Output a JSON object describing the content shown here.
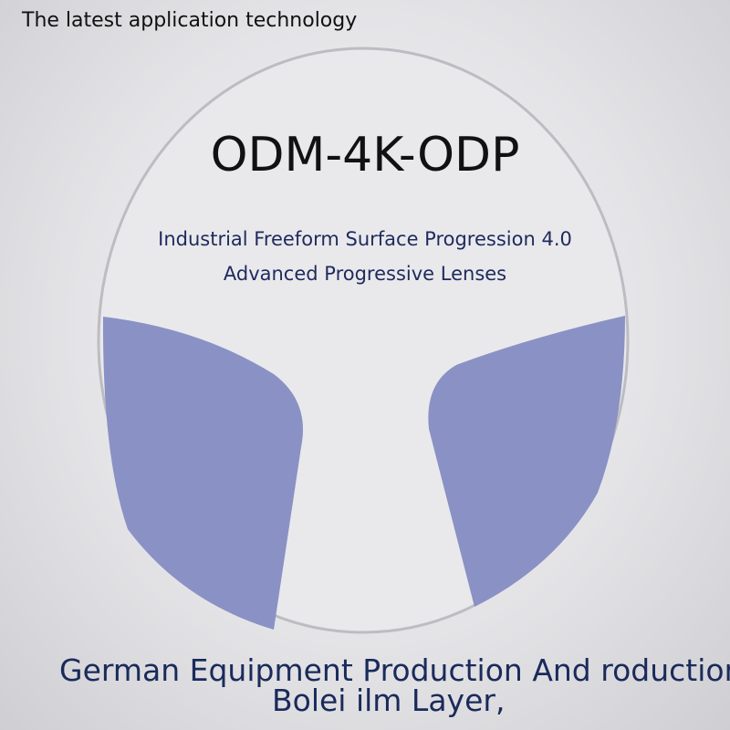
{
  "header": {
    "title": "The latest application technology"
  },
  "product": {
    "name": "ODM-4K-ODP",
    "line1": "Industrial Freeform Surface Progression 4.0",
    "line2": "Advanced Progressive Lenses"
  },
  "footer": {
    "line1": "German Equipment Production And roduction,",
    "line2": "Bolei ilm Layer,"
  }
}
